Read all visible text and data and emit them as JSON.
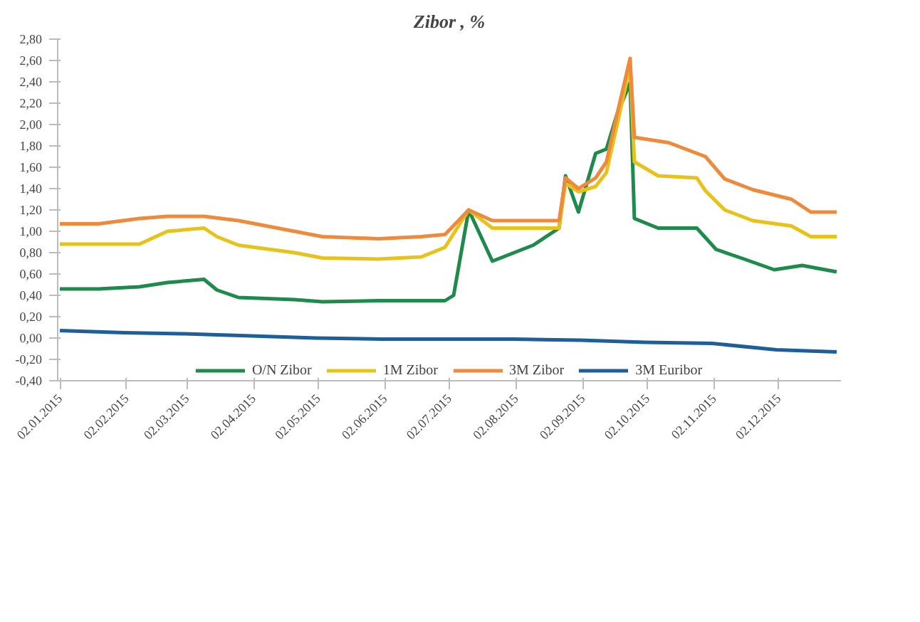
{
  "chart_data": {
    "type": "line",
    "title": "Zibor , %",
    "xlim": [
      "2015-01-01",
      "2015-12-31"
    ],
    "xticks": [
      {
        "value": "2015-01-02",
        "label": "02.01.2015"
      },
      {
        "value": "2015-02-02",
        "label": "02.02.2015"
      },
      {
        "value": "2015-03-02",
        "label": "02.03.2015"
      },
      {
        "value": "2015-04-02",
        "label": "02.04.2015"
      },
      {
        "value": "2015-05-02",
        "label": "02.05.2015"
      },
      {
        "value": "2015-06-02",
        "label": "02.06.2015"
      },
      {
        "value": "2015-07-02",
        "label": "02.07.2015"
      },
      {
        "value": "2015-08-02",
        "label": "02.08.2015"
      },
      {
        "value": "2015-09-02",
        "label": "02.09.2015"
      },
      {
        "value": "2015-10-02",
        "label": "02.10.2015"
      },
      {
        "value": "2015-11-02",
        "label": "02.11.2015"
      },
      {
        "value": "2015-12-02",
        "label": "02.12.2015"
      }
    ],
    "ylim": [
      -0.4,
      2.8
    ],
    "yticks": [
      {
        "value": -0.4,
        "label": "-0,40"
      },
      {
        "value": -0.2,
        "label": "-0,20"
      },
      {
        "value": 0,
        "label": "0,00"
      },
      {
        "value": 0.2,
        "label": "0,20"
      },
      {
        "value": 0.4,
        "label": "0,40"
      },
      {
        "value": 0.6,
        "label": "0,60"
      },
      {
        "value": 0.8,
        "label": "0,80"
      },
      {
        "value": 1.0,
        "label": "1,00"
      },
      {
        "value": 1.2,
        "label": "1,20"
      },
      {
        "value": 1.4,
        "label": "1,40"
      },
      {
        "value": 1.6,
        "label": "1,60"
      },
      {
        "value": 1.8,
        "label": "1,80"
      },
      {
        "value": 2.0,
        "label": "2,00"
      },
      {
        "value": 2.2,
        "label": "2,20"
      },
      {
        "value": 2.4,
        "label": "2,40"
      },
      {
        "value": 2.6,
        "label": "2,60"
      },
      {
        "value": 2.8,
        "label": "2,80"
      }
    ],
    "grid": false,
    "legend": "bottom",
    "marker": "none",
    "line_style": "solid",
    "series": [
      {
        "name": "O/N Zibor",
        "color": "#1e8a4c",
        "x": [
          "2015-01-02",
          "2015-01-20",
          "2015-02-08",
          "2015-02-21",
          "2015-03-10",
          "2015-03-16",
          "2015-03-26",
          "2015-04-21",
          "2015-05-04",
          "2015-05-30",
          "2015-06-19",
          "2015-06-30",
          "2015-07-04",
          "2015-07-11",
          "2015-07-22",
          "2015-08-10",
          "2015-08-22",
          "2015-08-25",
          "2015-08-31",
          "2015-09-08",
          "2015-09-13",
          "2015-09-18",
          "2015-09-24",
          "2015-09-26",
          "2015-10-07",
          "2015-10-25",
          "2015-11-03",
          "2015-11-16",
          "2015-11-30",
          "2015-12-13",
          "2015-12-29"
        ],
        "values": [
          0.46,
          0.46,
          0.48,
          0.52,
          0.55,
          0.45,
          0.38,
          0.36,
          0.34,
          0.35,
          0.35,
          0.35,
          0.4,
          1.2,
          0.72,
          0.87,
          1.03,
          1.52,
          1.18,
          1.73,
          1.77,
          2.1,
          2.39,
          1.12,
          1.03,
          1.03,
          0.83,
          0.74,
          0.64,
          0.68,
          0.62
        ]
      },
      {
        "name": "1M Zibor",
        "color": "#e6c21a",
        "x": [
          "2015-01-02",
          "2015-01-20",
          "2015-02-08",
          "2015-02-21",
          "2015-03-10",
          "2015-03-16",
          "2015-03-26",
          "2015-04-21",
          "2015-05-04",
          "2015-05-30",
          "2015-06-19",
          "2015-06-30",
          "2015-07-11",
          "2015-07-22",
          "2015-08-22",
          "2015-08-25",
          "2015-08-31",
          "2015-09-08",
          "2015-09-13",
          "2015-09-18",
          "2015-09-24",
          "2015-09-26",
          "2015-10-07",
          "2015-10-25",
          "2015-10-29",
          "2015-11-07",
          "2015-11-20",
          "2015-12-08",
          "2015-12-17",
          "2015-12-29"
        ],
        "values": [
          0.88,
          0.88,
          0.88,
          1.0,
          1.03,
          0.95,
          0.87,
          0.8,
          0.75,
          0.74,
          0.76,
          0.85,
          1.2,
          1.03,
          1.03,
          1.45,
          1.37,
          1.42,
          1.55,
          2.0,
          2.55,
          1.65,
          1.52,
          1.5,
          1.38,
          1.2,
          1.1,
          1.05,
          0.95,
          0.95
        ]
      },
      {
        "name": "3M Zibor",
        "color": "#ee8a3c",
        "x": [
          "2015-01-02",
          "2015-01-20",
          "2015-02-08",
          "2015-02-21",
          "2015-03-10",
          "2015-03-26",
          "2015-04-21",
          "2015-05-04",
          "2015-05-30",
          "2015-06-19",
          "2015-06-30",
          "2015-07-11",
          "2015-07-22",
          "2015-08-22",
          "2015-08-25",
          "2015-08-31",
          "2015-09-08",
          "2015-09-13",
          "2015-09-18",
          "2015-09-24",
          "2015-09-26",
          "2015-10-12",
          "2015-10-29",
          "2015-11-07",
          "2015-11-20",
          "2015-12-08",
          "2015-12-17",
          "2015-12-29"
        ],
        "values": [
          1.07,
          1.07,
          1.12,
          1.14,
          1.14,
          1.1,
          1.0,
          0.95,
          0.93,
          0.95,
          0.97,
          1.2,
          1.1,
          1.1,
          1.5,
          1.4,
          1.5,
          1.65,
          2.1,
          2.62,
          1.88,
          1.83,
          1.7,
          1.49,
          1.39,
          1.3,
          1.18,
          1.18
        ]
      },
      {
        "name": "3M Euribor",
        "color": "#1f5f99",
        "x": [
          "2015-01-02",
          "2015-02-01",
          "2015-03-01",
          "2015-04-01",
          "2015-05-01",
          "2015-06-01",
          "2015-07-01",
          "2015-08-01",
          "2015-09-01",
          "2015-10-01",
          "2015-11-01",
          "2015-12-01",
          "2015-12-29"
        ],
        "values": [
          0.07,
          0.05,
          0.04,
          0.02,
          0.0,
          -0.01,
          -0.01,
          -0.01,
          -0.02,
          -0.04,
          -0.05,
          -0.11,
          -0.13
        ]
      }
    ]
  }
}
